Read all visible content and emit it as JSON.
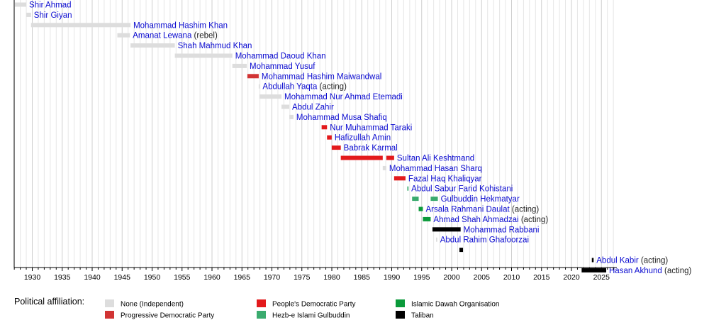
{
  "chart_data": {
    "type": "timeline",
    "xlim": [
      1926,
      2027
    ],
    "x_ticks": [
      1930,
      1935,
      1940,
      1945,
      1950,
      1955,
      1960,
      1965,
      1970,
      1975,
      1980,
      1985,
      1990,
      1995,
      2000,
      2005,
      2010,
      2015,
      2020,
      2025
    ],
    "grid": true,
    "legend_title": "Political affiliation:",
    "legend": [
      {
        "key": "none",
        "label": "None (Independent)",
        "color": "#dddddd"
      },
      {
        "key": "prog",
        "label": "Progressive Democratic Party",
        "color": "#d13434"
      },
      {
        "key": "pdp",
        "label": "People's Democratic Party",
        "color": "#e31a1c"
      },
      {
        "key": "hezb",
        "label": "Hezb-e Islami Gulbuddin",
        "color": "#3aab6e"
      },
      {
        "key": "idawah",
        "label": "Islamic Dawah Organisation",
        "color": "#0a9a3a"
      },
      {
        "key": "taliban",
        "label": "Taliban",
        "color": "#000000"
      }
    ],
    "rows": [
      {
        "name": "Shir Ahmad",
        "note": "",
        "party": "none",
        "bars": [
          [
            1927.1,
            1929.0
          ]
        ]
      },
      {
        "name": "Shir Giyan",
        "note": "",
        "party": "none",
        "bars": [
          [
            1929.0,
            1929.8
          ]
        ]
      },
      {
        "name": "Mohammad Hashim Khan",
        "note": "",
        "party": "none",
        "bars": [
          [
            1929.8,
            1946.4
          ]
        ]
      },
      {
        "name": "Amanat Lewana",
        "note": "(rebel)",
        "party": "none",
        "bars": [
          [
            1944.2,
            1946.3
          ]
        ]
      },
      {
        "name": "Shah Mahmud Khan",
        "note": "",
        "party": "none",
        "bars": [
          [
            1946.4,
            1953.8
          ]
        ]
      },
      {
        "name": "Mohammad Daoud Khan",
        "note": "",
        "party": "none",
        "bars": [
          [
            1953.8,
            1963.4
          ]
        ]
      },
      {
        "name": "Mohammad Yusuf",
        "note": "",
        "party": "none",
        "bars": [
          [
            1963.4,
            1965.8
          ]
        ]
      },
      {
        "name": "Mohammad Hashim Maiwandwal",
        "note": "",
        "party": "prog",
        "bars": [
          [
            1965.9,
            1967.8
          ]
        ]
      },
      {
        "name": "Abdullah Yaqta",
        "note": "(acting)",
        "party": "none",
        "bars": [
          [
            1967.8,
            1967.9
          ]
        ]
      },
      {
        "name": "Mohammad Nur Ahmad Etemadi",
        "note": "",
        "party": "none",
        "bars": [
          [
            1967.9,
            1971.6
          ]
        ]
      },
      {
        "name": "Abdul Zahir",
        "note": "",
        "party": "none",
        "bars": [
          [
            1971.6,
            1972.9
          ]
        ]
      },
      {
        "name": "Mohammad Musa Shafiq",
        "note": "",
        "party": "none",
        "bars": [
          [
            1972.9,
            1973.6
          ]
        ]
      },
      {
        "name": "Nur Muhammad Taraki",
        "note": "",
        "party": "pdp",
        "bars": [
          [
            1978.3,
            1979.2
          ]
        ]
      },
      {
        "name": "Hafizullah Amin",
        "note": "",
        "party": "pdp",
        "bars": [
          [
            1979.2,
            1979.98
          ]
        ]
      },
      {
        "name": "Babrak Karmal",
        "note": "",
        "party": "pdp",
        "bars": [
          [
            1979.98,
            1981.5
          ]
        ]
      },
      {
        "name": "Sultan Ali Keshtmand",
        "note": "",
        "party": "pdp",
        "bars": [
          [
            1981.5,
            1988.5
          ],
          [
            1989.1,
            1990.4
          ]
        ]
      },
      {
        "name": "Mohammad Hasan Sharq",
        "note": "",
        "party": "none",
        "bars": [
          [
            1988.5,
            1989.1
          ]
        ]
      },
      {
        "name": "Fazal Haq Khaliqyar",
        "note": "",
        "party": "pdp",
        "bars": [
          [
            1990.4,
            1992.3
          ]
        ]
      },
      {
        "name": "Abdul Sabur Farid Kohistani",
        "note": "",
        "party": "hezb",
        "bars": [
          [
            1992.6,
            1992.8
          ]
        ]
      },
      {
        "name": "Gulbuddin Hekmatyar",
        "note": "",
        "party": "hezb",
        "bars": [
          [
            1993.4,
            1994.5
          ],
          [
            1996.5,
            1997.7
          ]
        ]
      },
      {
        "name": "Arsala Rahmani Daulat",
        "note": "(acting)",
        "party": "idawah",
        "bars": [
          [
            1994.5,
            1995.2
          ]
        ]
      },
      {
        "name": "Ahmad Shah Ahmadzai",
        "note": "(acting)",
        "party": "idawah",
        "bars": [
          [
            1995.2,
            1996.5
          ]
        ]
      },
      {
        "name": "Mohammad Rabbani",
        "note": "",
        "party": "taliban",
        "bars": [
          [
            1996.8,
            2001.5
          ]
        ]
      },
      {
        "name": "Abdul Rahim Ghafoorzai",
        "note": "",
        "party": "none",
        "bars": [
          [
            1997.4,
            1997.6
          ]
        ]
      },
      {
        "name": "",
        "note": "",
        "party": "taliban",
        "bars": [
          [
            2001.3,
            2001.9
          ]
        ]
      },
      {
        "name": "Abdul Kabir",
        "note": "(acting)",
        "party": "taliban",
        "bars": [
          [
            2023.4,
            2023.7
          ]
        ]
      },
      {
        "name": "Hasan Akhund",
        "note": "(acting)",
        "party": "taliban",
        "bars": [
          [
            2021.7,
            2025.8
          ]
        ]
      }
    ]
  }
}
